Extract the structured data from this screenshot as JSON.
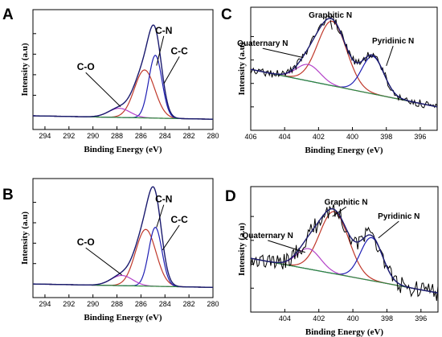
{
  "chart_data": [
    {
      "panel": "A",
      "type": "line",
      "xlabel": "Binding Energy (eV)",
      "ylabel": "Intensity (a.u)",
      "xlim": [
        295,
        280
      ],
      "ylim": [
        0,
        1.05
      ],
      "xticks": [
        294,
        292,
        290,
        288,
        286,
        284,
        282,
        280
      ],
      "tick_labels": [
        "294",
        "292",
        "290",
        "288",
        "286",
        "284",
        "282",
        "280"
      ],
      "yticks": [
        0.12,
        0.3,
        0.48,
        0.66,
        0.84
      ],
      "baseline": [
        [
          295,
          0.12
        ],
        [
          280,
          0.09
        ]
      ],
      "series": [
        {
          "color": "#c0392b",
          "center": 285.7,
          "height": 0.42,
          "width": 0.85
        },
        {
          "color": "#1f1fb4",
          "center": 284.8,
          "height": 0.55,
          "width": 0.55
        },
        {
          "color": "#b342c8",
          "center": 287.8,
          "height": 0.08,
          "width": 0.9
        },
        {
          "color": "#2e8b3a",
          "type": "background"
        },
        {
          "color": "#1a1a6e",
          "type": "envelope",
          "noise": 0
        }
      ],
      "annotations": [
        {
          "text": "C-N",
          "x": 284.1,
          "y": 0.84,
          "arrow": [
            284.7,
            0.56
          ]
        },
        {
          "text": "C-C",
          "x": 282.8,
          "y": 0.66,
          "arrow": [
            284.1,
            0.4
          ]
        },
        {
          "text": "C-O",
          "x": 290.6,
          "y": 0.52,
          "arrow": [
            287.7,
            0.2
          ]
        }
      ],
      "grid": false
    },
    {
      "panel": "B",
      "type": "line",
      "xlabel": "Binding Energy (eV)",
      "ylabel": "Intensity (a.u)",
      "xlim": [
        295,
        280
      ],
      "ylim": [
        0,
        1.05
      ],
      "xticks": [
        294,
        292,
        290,
        288,
        286,
        284,
        282,
        280
      ],
      "tick_labels": [
        "294",
        "292",
        "290",
        "288",
        "286",
        "284",
        "282",
        "280"
      ],
      "yticks": [
        0.12,
        0.3,
        0.48,
        0.66,
        0.84
      ],
      "baseline": [
        [
          295,
          0.12
        ],
        [
          280,
          0.09
        ]
      ],
      "series": [
        {
          "color": "#c0392b",
          "center": 285.6,
          "height": 0.5,
          "width": 0.85
        },
        {
          "color": "#1f1fb4",
          "center": 284.8,
          "height": 0.52,
          "width": 0.55
        },
        {
          "color": "#b342c8",
          "center": 287.6,
          "height": 0.09,
          "width": 0.9
        },
        {
          "color": "#2e8b3a",
          "type": "background"
        },
        {
          "color": "#1a1a6e",
          "type": "envelope",
          "noise": 0
        }
      ],
      "annotations": [
        {
          "text": "C-N",
          "x": 284.1,
          "y": 0.84,
          "arrow": [
            284.7,
            0.62
          ]
        },
        {
          "text": "C-C",
          "x": 282.8,
          "y": 0.66,
          "arrow": [
            284.2,
            0.42
          ]
        },
        {
          "text": "C-O",
          "x": 290.6,
          "y": 0.46,
          "arrow": [
            287.6,
            0.2
          ]
        }
      ],
      "grid": false
    },
    {
      "panel": "C",
      "type": "line",
      "xlabel": "Binding Energy (eV)",
      "ylabel": "Intensity (a.u)",
      "xlim": [
        406,
        395
      ],
      "ylim": [
        0,
        1.05
      ],
      "xticks": [
        406,
        404,
        402,
        400,
        398,
        396
      ],
      "tick_labels": [
        "406",
        "404",
        "402",
        "400",
        "398",
        "396"
      ],
      "yticks": [
        0.2,
        0.4,
        0.6,
        0.8
      ],
      "baseline": [
        [
          406,
          0.52
        ],
        [
          395,
          0.2
        ]
      ],
      "series": [
        {
          "color": "#c0392b",
          "center": 401.2,
          "height": 0.55,
          "width": 0.85
        },
        {
          "color": "#1f1fb4",
          "center": 398.8,
          "height": 0.32,
          "width": 0.65
        },
        {
          "color": "#b342c8",
          "center": 402.6,
          "height": 0.14,
          "width": 0.7
        },
        {
          "color": "#2e8b3a",
          "type": "background"
        },
        {
          "color": "#1a1a6e",
          "type": "envelope",
          "noise": 0.035
        }
      ],
      "annotations": [
        {
          "text": "Graphitic N",
          "x": 401.3,
          "y": 0.96,
          "arrow": [
            401.2,
            0.86
          ]
        },
        {
          "text": "Quaternary N",
          "x": 405.3,
          "y": 0.72,
          "arrow": [
            402.9,
            0.62
          ]
        },
        {
          "text": "Pyridinic N",
          "x": 397.6,
          "y": 0.74,
          "arrow": [
            398.0,
            0.55
          ]
        }
      ],
      "grid": false
    },
    {
      "panel": "D",
      "type": "line",
      "xlabel": "Binding Energy (eV)",
      "ylabel": "Intensity (a.u)",
      "xlim": [
        406,
        395
      ],
      "ylim": [
        0,
        1.05
      ],
      "xticks": [
        404,
        402,
        400,
        398,
        396
      ],
      "tick_labels": [
        "404",
        "402",
        "400",
        "398",
        "396"
      ],
      "yticks": [
        0.2,
        0.4,
        0.6,
        0.8
      ],
      "baseline": [
        [
          406,
          0.45
        ],
        [
          395,
          0.16
        ]
      ],
      "series": [
        {
          "color": "#c0392b",
          "center": 401.1,
          "height": 0.52,
          "width": 0.85
        },
        {
          "color": "#1f1fb4",
          "center": 398.9,
          "height": 0.36,
          "width": 0.65
        },
        {
          "color": "#b342c8",
          "center": 402.6,
          "height": 0.17,
          "width": 0.7
        },
        {
          "color": "#2e8b3a",
          "type": "background"
        },
        {
          "color": "#1a1a6e",
          "type": "envelope",
          "noise": 0.07
        }
      ],
      "annotations": [
        {
          "text": "Graphitic N",
          "x": 400.4,
          "y": 0.9,
          "arrow": [
            401.2,
            0.8
          ]
        },
        {
          "text": "Quaternary N",
          "x": 405.0,
          "y": 0.62,
          "arrow": [
            402.8,
            0.5
          ]
        },
        {
          "text": "Pyridinic N",
          "x": 397.3,
          "y": 0.78,
          "arrow": [
            398.5,
            0.62
          ]
        }
      ],
      "grid": false
    }
  ]
}
